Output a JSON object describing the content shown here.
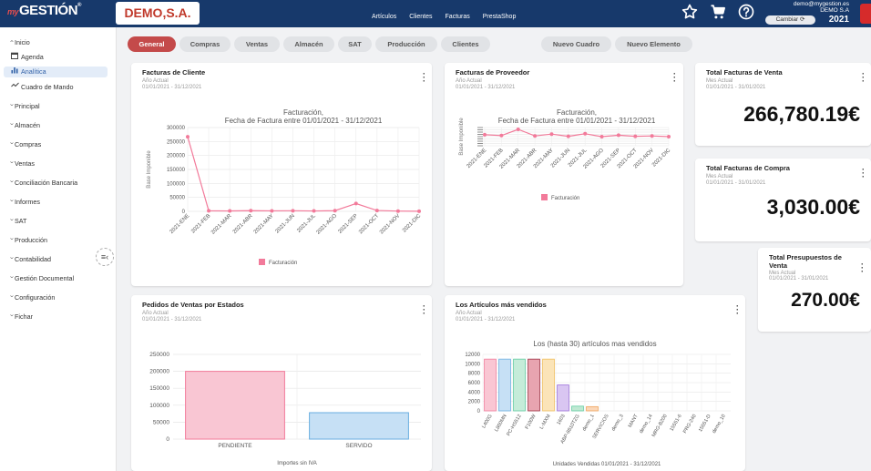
{
  "header": {
    "logo_prefix": "my",
    "logo_main": "GESTIÓN",
    "logo_reg": "®",
    "company": "DEMO,S.A.",
    "nav": [
      "Artículos",
      "Clientes",
      "Facturas",
      "PrestaShop"
    ],
    "icons": [
      "star-icon",
      "cart-icon",
      "help-icon"
    ],
    "user_email": "demo@mygestion.es",
    "user_company": "DEMO S.A",
    "change_label": "Cambiar",
    "year": "2021"
  },
  "sidebar": {
    "items": [
      {
        "label": "Inicio",
        "type": "group-open"
      },
      {
        "label": "Agenda",
        "type": "sub",
        "icon": "calendar-icon"
      },
      {
        "label": "Analítica",
        "type": "sub-active",
        "icon": "bar-chart-icon"
      },
      {
        "label": "Cuadro de Mando",
        "type": "sub",
        "icon": "dashboard-icon"
      },
      {
        "label": "Principal",
        "type": "group"
      },
      {
        "label": "Almacén",
        "type": "group"
      },
      {
        "label": "Compras",
        "type": "group"
      },
      {
        "label": "Ventas",
        "type": "group"
      },
      {
        "label": "Conciliación Bancaria",
        "type": "group"
      },
      {
        "label": "Informes",
        "type": "group"
      },
      {
        "label": "SAT",
        "type": "group"
      },
      {
        "label": "Producción",
        "type": "group"
      },
      {
        "label": "Contabilidad",
        "type": "group"
      },
      {
        "label": "Gestión Documental",
        "type": "group"
      },
      {
        "label": "Configuración",
        "type": "group"
      },
      {
        "label": "Fichar",
        "type": "group"
      }
    ]
  },
  "tabs": [
    "General",
    "Compras",
    "Ventas",
    "Almacén",
    "SAT",
    "Producción",
    "Clientes"
  ],
  "actions": {
    "new_board": "Nuevo Cuadro",
    "new_element": "Nuevo Elemento"
  },
  "cards": {
    "facturas_cliente": {
      "title": "Facturas de Cliente",
      "period": "Año Actual",
      "range": "01/01/2021 - 31/12/2021"
    },
    "facturas_proveedor": {
      "title": "Facturas de Proveedor",
      "period": "Año Actual",
      "range": "01/01/2021 - 31/12/2021"
    },
    "total_ventas": {
      "title": "Total Facturas de Venta",
      "period": "Mes Actual",
      "range": "01/01/2021 - 31/01/2021",
      "value": "266,780.19€"
    },
    "total_compra": {
      "title": "Total Facturas de Compra",
      "period": "Mes Actual",
      "range": "01/01/2021 - 31/01/2021",
      "value": "3,030.00€"
    },
    "total_presupuestos": {
      "title": "Total Presupuestos de Venta",
      "period": "Mes Actual",
      "range": "01/01/2021 - 31/01/2021",
      "value": "270.00€"
    },
    "pedidos": {
      "title": "Pedidos de Ventas por Estados",
      "period": "Año Actual",
      "range": "01/01/2021 - 31/12/2021"
    },
    "articulos": {
      "title": "Los Artículos más vendidos",
      "period": "Año Actual",
      "range": "01/01/2021 - 31/12/2021"
    }
  },
  "chart_data": [
    {
      "id": "facturas_cliente",
      "type": "line",
      "title": [
        "Facturación,",
        "Fecha de Factura entre 01/01/2021 - 31/12/2021"
      ],
      "ylabel": "Base Imponible",
      "categories": [
        "2021-ENE",
        "2021-FEB",
        "2021-MAR",
        "2021-ABR",
        "2021-MAY",
        "2021-JUN",
        "2021-JUL",
        "2021-AGO",
        "2021-SEP",
        "2021-OCT",
        "2021-NOV",
        "2021-DIC"
      ],
      "yticks": [
        "0",
        "50000",
        "100000",
        "150000",
        "200000",
        "250000",
        "300000"
      ],
      "ylim": [
        0,
        300000
      ],
      "series": [
        {
          "name": "Facturación",
          "values": [
            266780,
            2000,
            1500,
            2500,
            1800,
            2200,
            1500,
            2500,
            28000,
            3000,
            1000,
            500
          ]
        }
      ],
      "color": "#f27a9a",
      "legend_position": "bottom"
    },
    {
      "id": "facturas_proveedor",
      "type": "line",
      "title": [
        "Facturación,",
        "Fecha de Factura entre 01/01/2021 - 31/12/2021"
      ],
      "ylabel": "Base Imponible",
      "categories": [
        "2021-ENE",
        "2021-FEB",
        "2021-MAR",
        "2021-ABR",
        "2021-MAY",
        "2021-JUN",
        "2021-JUL",
        "2021-AGO",
        "2021-SEP",
        "2021-OCT",
        "2021-NOV",
        "2021-DIC"
      ],
      "series": [
        {
          "name": "Facturación",
          "values": [
            3030,
            2800,
            4500,
            2700,
            3200,
            2600,
            3300,
            2500,
            2900,
            2600,
            2700,
            2500
          ]
        }
      ],
      "ylim": [
        0,
        5000
      ],
      "color": "#f27a9a",
      "legend_position": "bottom"
    },
    {
      "id": "pedidos",
      "type": "bar",
      "xlabel": "Importes sin IVA",
      "categories": [
        "PENDIENTE",
        "SERVIDO"
      ],
      "values": [
        200000,
        78000
      ],
      "yticks": [
        "0",
        "50000",
        "100000",
        "150000",
        "200000",
        "250000"
      ],
      "ylim": [
        0,
        250000
      ],
      "colors": [
        "#f9c6d3",
        "#c6e0f5"
      ],
      "borders": [
        "#f27a9a",
        "#6aaee0"
      ]
    },
    {
      "id": "articulos",
      "type": "bar",
      "title": "Los (hasta 30) artículos mas vendidos",
      "xlabel": "Unidades Vendidas 01/01/2021 - 31/12/2021",
      "categories": [
        "L400G",
        "L800MN",
        "PC-HS512",
        "F100W",
        "L-MXM",
        "1603",
        "ABP-8810TZG",
        "demo_1",
        "SERVICIOS",
        "demo_3",
        "MANT",
        "demo_14",
        "MRG-B200",
        "15551-6",
        "PRG-240",
        "15551-D",
        "demo_10"
      ],
      "values": [
        11000,
        11000,
        11000,
        11000,
        11000,
        5500,
        1000,
        900,
        0,
        0,
        0,
        0,
        0,
        0,
        0,
        0,
        0
      ],
      "yticks": [
        "0",
        "2000",
        "4000",
        "6000",
        "8000",
        "10000",
        "12000"
      ],
      "ylim": [
        0,
        12000
      ],
      "colors": [
        "#f9c6d3",
        "#c6e0f5",
        "#c5ecd9",
        "#e8a4b0",
        "#fbe4b8",
        "#d9c6f2",
        "#bfe8d2",
        "#fbd7b8",
        "#e0e0e0",
        "#d9d9d9",
        "#d9d9d9",
        "#d9d9d9",
        "#d9d9d9",
        "#d9d9d9",
        "#d9d9d9",
        "#d9d9d9",
        "#d9d9d9"
      ],
      "borders": [
        "#f27a9a",
        "#6aaee0",
        "#5fcba0",
        "#9b2c3f",
        "#f0bd5a",
        "#9a6fd8",
        "#5fcba0",
        "#f0a35a",
        "#bbbbbb",
        "#bbbbbb",
        "#bbbbbb",
        "#bbbbbb",
        "#bbbbbb",
        "#bbbbbb",
        "#bbbbbb",
        "#bbbbbb",
        "#bbbbbb"
      ]
    }
  ]
}
